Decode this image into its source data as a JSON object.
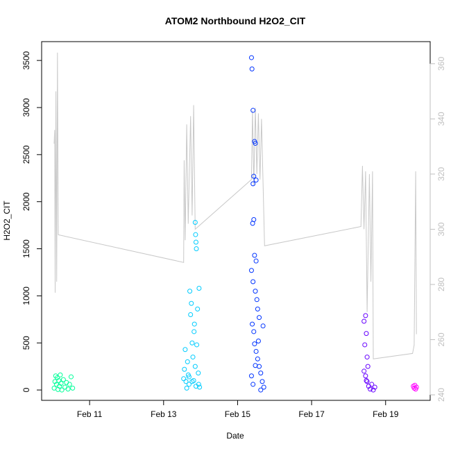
{
  "chart_data": {
    "type": "scatter",
    "title": "ATOM2 Northbound H2O2_CIT",
    "xlabel": "Date",
    "ylabel": "H2O2_CIT",
    "x_tick_labels": [
      "Feb 11",
      "Feb 13",
      "Feb 15",
      "Feb 17",
      "Feb 19"
    ],
    "x_ticks": [
      "2017-02-11",
      "2017-02-13",
      "2017-02-15",
      "2017-02-17",
      "2017-02-19"
    ],
    "xlim": [
      "2017-02-09T16:53",
      "2017-02-20T04:55"
    ],
    "ylim": [
      -110,
      3700
    ],
    "y_ticks": [
      0,
      500,
      1000,
      1500,
      2000,
      2500,
      3000,
      3500
    ],
    "y2_ticks": [
      240,
      260,
      280,
      300,
      320,
      340,
      360
    ],
    "y2lim": [
      238,
      368
    ],
    "grid": false,
    "legend": "none",
    "colors": {
      "line": "#c8c8c8",
      "axis": "#000000",
      "right_axis": "#bfbfbf",
      "flight1": "#00ff99",
      "flight2": "#00ccff",
      "flight3": "#0033ff",
      "flight4": "#6600ff",
      "flight5": "#ff00ff"
    },
    "series": [
      {
        "color_key": "flight1",
        "points": [
          {
            "x": "2017-02-10T01:00",
            "y": 20
          },
          {
            "x": "2017-02-10T01:30",
            "y": 90
          },
          {
            "x": "2017-02-10T02:00",
            "y": 150
          },
          {
            "x": "2017-02-10T02:30",
            "y": 60
          },
          {
            "x": "2017-02-10T03:00",
            "y": 130
          },
          {
            "x": "2017-02-10T03:30",
            "y": 5
          },
          {
            "x": "2017-02-10T04:00",
            "y": 100
          },
          {
            "x": "2017-02-10T04:30",
            "y": 40
          },
          {
            "x": "2017-02-10T05:00",
            "y": 160
          },
          {
            "x": "2017-02-10T05:30",
            "y": 70
          },
          {
            "x": "2017-02-10T06:00",
            "y": 0
          },
          {
            "x": "2017-02-10T07:00",
            "y": 110
          },
          {
            "x": "2017-02-10T08:00",
            "y": 30
          },
          {
            "x": "2017-02-10T09:00",
            "y": 80
          },
          {
            "x": "2017-02-10T10:00",
            "y": 10
          },
          {
            "x": "2017-02-10T11:00",
            "y": 60
          },
          {
            "x": "2017-02-10T12:00",
            "y": 140
          },
          {
            "x": "2017-02-10T13:00",
            "y": 20
          }
        ]
      },
      {
        "color_key": "flight2",
        "points": [
          {
            "x": "2017-02-13T13:00",
            "y": 120
          },
          {
            "x": "2017-02-13T13:30",
            "y": 220
          },
          {
            "x": "2017-02-13T14:00",
            "y": 430
          },
          {
            "x": "2017-02-13T14:30",
            "y": 90
          },
          {
            "x": "2017-02-13T15:00",
            "y": 20
          },
          {
            "x": "2017-02-13T15:30",
            "y": 300
          },
          {
            "x": "2017-02-13T16:00",
            "y": 160
          },
          {
            "x": "2017-02-13T16:30",
            "y": 60
          },
          {
            "x": "2017-02-13T17:00",
            "y": 1050
          },
          {
            "x": "2017-02-13T17:30",
            "y": 800
          },
          {
            "x": "2017-02-13T18:00",
            "y": 920
          },
          {
            "x": "2017-02-13T18:30",
            "y": 500
          },
          {
            "x": "2017-02-13T19:00",
            "y": 350
          },
          {
            "x": "2017-02-13T19:30",
            "y": 100
          },
          {
            "x": "2017-02-13T20:00",
            "y": 700
          },
          {
            "x": "2017-02-13T20:30",
            "y": 250
          },
          {
            "x": "2017-02-13T21:00",
            "y": 40
          },
          {
            "x": "2017-02-13T21:30",
            "y": 480
          },
          {
            "x": "2017-02-13T22:00",
            "y": 860
          },
          {
            "x": "2017-02-13T22:30",
            "y": 180
          },
          {
            "x": "2017-02-13T23:00",
            "y": 1080
          },
          {
            "x": "2017-02-13T23:20",
            "y": 30
          },
          {
            "x": "2017-02-13T20:30",
            "y": 1780
          },
          {
            "x": "2017-02-13T20:45",
            "y": 1650
          },
          {
            "x": "2017-02-13T21:00",
            "y": 1570
          },
          {
            "x": "2017-02-13T21:15",
            "y": 1500
          },
          {
            "x": "2017-02-13T16:30",
            "y": 140
          },
          {
            "x": "2017-02-13T18:30",
            "y": 90
          },
          {
            "x": "2017-02-13T22:45",
            "y": 60
          },
          {
            "x": "2017-02-13T19:45",
            "y": 620
          }
        ]
      },
      {
        "color_key": "flight3",
        "points": [
          {
            "x": "2017-02-15T09:00",
            "y": 3530
          },
          {
            "x": "2017-02-15T09:20",
            "y": 3410
          },
          {
            "x": "2017-02-15T10:00",
            "y": 2970
          },
          {
            "x": "2017-02-15T11:00",
            "y": 2640
          },
          {
            "x": "2017-02-15T11:30",
            "y": 2620
          },
          {
            "x": "2017-02-15T10:30",
            "y": 2270
          },
          {
            "x": "2017-02-15T12:00",
            "y": 2230
          },
          {
            "x": "2017-02-15T10:00",
            "y": 2190
          },
          {
            "x": "2017-02-15T09:45",
            "y": 1770
          },
          {
            "x": "2017-02-15T10:30",
            "y": 1810
          },
          {
            "x": "2017-02-15T11:00",
            "y": 1430
          },
          {
            "x": "2017-02-15T12:00",
            "y": 1370
          },
          {
            "x": "2017-02-15T09:00",
            "y": 1270
          },
          {
            "x": "2017-02-15T10:00",
            "y": 1150
          },
          {
            "x": "2017-02-15T11:30",
            "y": 1050
          },
          {
            "x": "2017-02-15T12:30",
            "y": 960
          },
          {
            "x": "2017-02-15T13:00",
            "y": 860
          },
          {
            "x": "2017-02-15T14:00",
            "y": 770
          },
          {
            "x": "2017-02-15T09:30",
            "y": 700
          },
          {
            "x": "2017-02-15T10:30",
            "y": 620
          },
          {
            "x": "2017-02-15T11:00",
            "y": 490
          },
          {
            "x": "2017-02-15T12:00",
            "y": 410
          },
          {
            "x": "2017-02-15T13:00",
            "y": 330
          },
          {
            "x": "2017-02-15T14:00",
            "y": 250
          },
          {
            "x": "2017-02-15T15:00",
            "y": 180
          },
          {
            "x": "2017-02-15T16:00",
            "y": 90
          },
          {
            "x": "2017-02-15T17:00",
            "y": 30
          },
          {
            "x": "2017-02-15T09:00",
            "y": 150
          },
          {
            "x": "2017-02-15T11:30",
            "y": 260
          },
          {
            "x": "2017-02-15T13:30",
            "y": 520
          },
          {
            "x": "2017-02-15T15:00",
            "y": 0
          },
          {
            "x": "2017-02-15T16:30",
            "y": 680
          },
          {
            "x": "2017-02-15T10:00",
            "y": 60
          }
        ]
      },
      {
        "color_key": "flight4",
        "points": [
          {
            "x": "2017-02-18T10:00",
            "y": 730
          },
          {
            "x": "2017-02-18T11:00",
            "y": 790
          },
          {
            "x": "2017-02-18T11:30",
            "y": 600
          },
          {
            "x": "2017-02-18T10:30",
            "y": 480
          },
          {
            "x": "2017-02-18T12:00",
            "y": 350
          },
          {
            "x": "2017-02-18T10:00",
            "y": 200
          },
          {
            "x": "2017-02-18T11:00",
            "y": 150
          },
          {
            "x": "2017-02-18T12:00",
            "y": 90
          },
          {
            "x": "2017-02-18T13:00",
            "y": 40
          },
          {
            "x": "2017-02-18T14:00",
            "y": 10
          },
          {
            "x": "2017-02-18T15:00",
            "y": 60
          },
          {
            "x": "2017-02-18T16:00",
            "y": 0
          },
          {
            "x": "2017-02-18T17:00",
            "y": 30
          },
          {
            "x": "2017-02-18T12:30",
            "y": 250
          },
          {
            "x": "2017-02-18T11:30",
            "y": 100
          }
        ]
      },
      {
        "color_key": "flight5",
        "points": [
          {
            "x": "2017-02-19T18:00",
            "y": 40
          },
          {
            "x": "2017-02-19T18:30",
            "y": 20
          },
          {
            "x": "2017-02-19T19:00",
            "y": 50
          },
          {
            "x": "2017-02-19T19:30",
            "y": 10
          },
          {
            "x": "2017-02-19T20:00",
            "y": 30
          }
        ]
      }
    ],
    "line_series": [
      {
        "x": "2017-02-10T01:00",
        "y2": 331
      },
      {
        "x": "2017-02-10T01:20",
        "y2": 336
      },
      {
        "x": "2017-02-10T01:40",
        "y2": 277
      },
      {
        "x": "2017-02-10T02:10",
        "y2": 350
      },
      {
        "x": "2017-02-10T02:40",
        "y2": 281
      },
      {
        "x": "2017-02-10T03:10",
        "y2": 364
      },
      {
        "x": "2017-02-10T03:40",
        "y2": 298
      },
      {
        "x": "2017-02-13T13:00",
        "y2": 288
      },
      {
        "x": "2017-02-13T13:20",
        "y2": 325
      },
      {
        "x": "2017-02-13T14:00",
        "y2": 296
      },
      {
        "x": "2017-02-13T15:00",
        "y2": 338
      },
      {
        "x": "2017-02-13T16:00",
        "y2": 302
      },
      {
        "x": "2017-02-13T17:30",
        "y2": 341
      },
      {
        "x": "2017-02-13T18:30",
        "y2": 305
      },
      {
        "x": "2017-02-13T19:30",
        "y2": 345
      },
      {
        "x": "2017-02-13T20:30",
        "y2": 300
      },
      {
        "x": "2017-02-15T09:00",
        "y2": 318
      },
      {
        "x": "2017-02-15T09:40",
        "y2": 343
      },
      {
        "x": "2017-02-15T10:30",
        "y2": 316
      },
      {
        "x": "2017-02-15T11:30",
        "y2": 344
      },
      {
        "x": "2017-02-15T12:30",
        "y2": 320
      },
      {
        "x": "2017-02-15T13:30",
        "y2": 342
      },
      {
        "x": "2017-02-15T14:30",
        "y2": 318
      },
      {
        "x": "2017-02-15T15:30",
        "y2": 340
      },
      {
        "x": "2017-02-15T17:30",
        "y2": 294
      },
      {
        "x": "2017-02-18T08:00",
        "y2": 301
      },
      {
        "x": "2017-02-18T09:00",
        "y2": 323
      },
      {
        "x": "2017-02-18T10:00",
        "y2": 300
      },
      {
        "x": "2017-02-18T11:00",
        "y2": 321
      },
      {
        "x": "2017-02-18T12:00",
        "y2": 270
      },
      {
        "x": "2017-02-18T13:30",
        "y2": 320
      },
      {
        "x": "2017-02-18T14:30",
        "y2": 281
      },
      {
        "x": "2017-02-18T15:30",
        "y2": 321
      },
      {
        "x": "2017-02-18T16:00",
        "y2": 253
      },
      {
        "x": "2017-02-19T17:30",
        "y2": 255
      },
      {
        "x": "2017-02-19T18:30",
        "y2": 258
      },
      {
        "x": "2017-02-19T19:30",
        "y2": 321
      },
      {
        "x": "2017-02-19T20:00",
        "y2": 262
      }
    ]
  }
}
